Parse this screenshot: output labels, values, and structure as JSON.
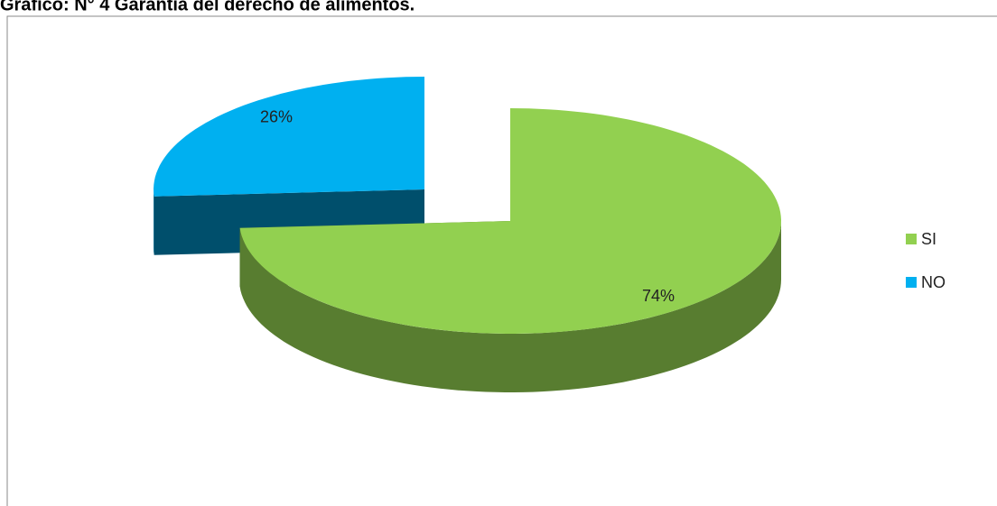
{
  "chart_data": {
    "type": "pie",
    "title": "Gráfico: N° 4 Garantía del derecho de alimentos.",
    "categories": [
      "SI",
      "NO"
    ],
    "values": [
      74,
      26
    ],
    "value_labels": [
      "74%",
      "26%"
    ],
    "colors": [
      "#92d050",
      "#00b0f0"
    ],
    "legend": "right"
  }
}
